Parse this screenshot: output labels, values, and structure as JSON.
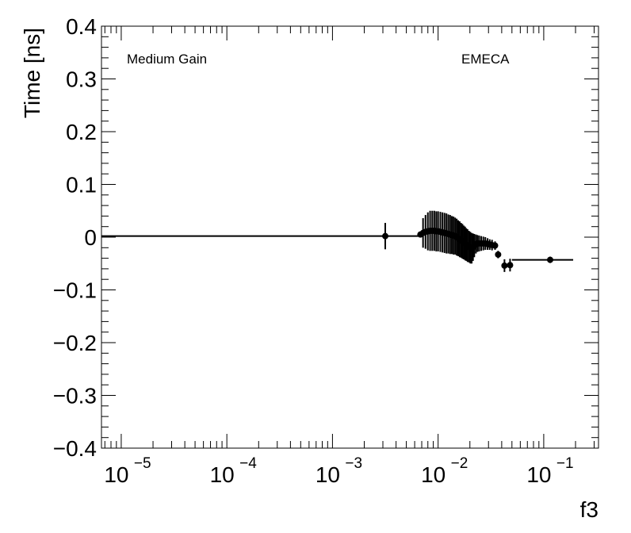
{
  "chart_data": {
    "type": "scatter",
    "xscale": "log",
    "xlim": [
      6.5e-06,
      0.33
    ],
    "ylim": [
      -0.4,
      0.4
    ],
    "xlabel": "f3",
    "ylabel": "Time [ns]",
    "grid": false,
    "annotations": [
      "Medium Gain",
      "EMECA"
    ],
    "x_ticks": [
      {
        "base": "10",
        "exp": "−5",
        "value": 1e-05
      },
      {
        "base": "10",
        "exp": "−4",
        "value": 0.0001
      },
      {
        "base": "10",
        "exp": "−3",
        "value": 0.001
      },
      {
        "base": "10",
        "exp": "−2",
        "value": 0.01
      },
      {
        "base": "10",
        "exp": "−1",
        "value": 0.1
      }
    ],
    "y_ticks": [
      {
        "label": "0.4",
        "value": 0.4
      },
      {
        "label": "0.3",
        "value": 0.3
      },
      {
        "label": "0.2",
        "value": 0.2
      },
      {
        "label": "0.1",
        "value": 0.1
      },
      {
        "label": "0",
        "value": 0
      },
      {
        "label": "−0.1",
        "value": -0.1
      },
      {
        "label": "−0.2",
        "value": -0.2
      },
      {
        "label": "−0.3",
        "value": -0.3
      },
      {
        "label": "−0.4",
        "value": -0.4
      }
    ],
    "points": [
      {
        "x": 0.00316,
        "y": 0.002,
        "xlo": 6.5e-06,
        "xhi": 0.0065,
        "yerr": 0.025
      },
      {
        "x": 0.0068,
        "y": 0.005,
        "xlo": 0.0065,
        "xhi": 0.0071,
        "yerr": 0.0
      },
      {
        "x": 0.0072,
        "y": 0.008,
        "xlo": 0.0071,
        "xhi": 0.0074,
        "yerr": 0.028
      },
      {
        "x": 0.0076,
        "y": 0.01,
        "xlo": 0.0074,
        "xhi": 0.0078,
        "yerr": 0.032
      },
      {
        "x": 0.008,
        "y": 0.011,
        "xlo": 0.0078,
        "xhi": 0.0082,
        "yerr": 0.036
      },
      {
        "x": 0.0084,
        "y": 0.012,
        "xlo": 0.0082,
        "xhi": 0.0086,
        "yerr": 0.038
      },
      {
        "x": 0.0088,
        "y": 0.012,
        "xlo": 0.0086,
        "xhi": 0.009,
        "yerr": 0.038
      },
      {
        "x": 0.0092,
        "y": 0.012,
        "xlo": 0.009,
        "xhi": 0.0094,
        "yerr": 0.038
      },
      {
        "x": 0.0096,
        "y": 0.011,
        "xlo": 0.0094,
        "xhi": 0.0098,
        "yerr": 0.038
      },
      {
        "x": 0.01,
        "y": 0.011,
        "xlo": 0.0098,
        "xhi": 0.0102,
        "yerr": 0.038
      },
      {
        "x": 0.0105,
        "y": 0.01,
        "xlo": 0.0102,
        "xhi": 0.0107,
        "yerr": 0.038
      },
      {
        "x": 0.011,
        "y": 0.009,
        "xlo": 0.0107,
        "xhi": 0.0112,
        "yerr": 0.038
      },
      {
        "x": 0.0115,
        "y": 0.008,
        "xlo": 0.0112,
        "xhi": 0.0117,
        "yerr": 0.038
      },
      {
        "x": 0.012,
        "y": 0.007,
        "xlo": 0.0117,
        "xhi": 0.0122,
        "yerr": 0.038
      },
      {
        "x": 0.0125,
        "y": 0.006,
        "xlo": 0.0122,
        "xhi": 0.0127,
        "yerr": 0.037
      },
      {
        "x": 0.013,
        "y": 0.005,
        "xlo": 0.0127,
        "xhi": 0.0132,
        "yerr": 0.037
      },
      {
        "x": 0.0135,
        "y": 0.004,
        "xlo": 0.0132,
        "xhi": 0.0137,
        "yerr": 0.036
      },
      {
        "x": 0.014,
        "y": 0.003,
        "xlo": 0.0137,
        "xhi": 0.0142,
        "yerr": 0.036
      },
      {
        "x": 0.0145,
        "y": 0.002,
        "xlo": 0.0142,
        "xhi": 0.0147,
        "yerr": 0.035
      },
      {
        "x": 0.015,
        "y": 0.0,
        "xlo": 0.0147,
        "xhi": 0.0152,
        "yerr": 0.035
      },
      {
        "x": 0.0155,
        "y": -0.002,
        "xlo": 0.0152,
        "xhi": 0.0157,
        "yerr": 0.034
      },
      {
        "x": 0.016,
        "y": -0.004,
        "xlo": 0.0157,
        "xhi": 0.0162,
        "yerr": 0.034
      },
      {
        "x": 0.0165,
        "y": -0.006,
        "xlo": 0.0162,
        "xhi": 0.0167,
        "yerr": 0.033
      },
      {
        "x": 0.017,
        "y": -0.008,
        "xlo": 0.0167,
        "xhi": 0.0172,
        "yerr": 0.033
      },
      {
        "x": 0.0175,
        "y": -0.01,
        "xlo": 0.0172,
        "xhi": 0.0177,
        "yerr": 0.032
      },
      {
        "x": 0.018,
        "y": -0.012,
        "xlo": 0.0177,
        "xhi": 0.0182,
        "yerr": 0.032
      },
      {
        "x": 0.0185,
        "y": -0.014,
        "xlo": 0.0182,
        "xhi": 0.0187,
        "yerr": 0.031
      },
      {
        "x": 0.019,
        "y": -0.016,
        "xlo": 0.0187,
        "xhi": 0.0193,
        "yerr": 0.031
      },
      {
        "x": 0.0196,
        "y": -0.018,
        "xlo": 0.0193,
        "xhi": 0.0199,
        "yerr": 0.03
      },
      {
        "x": 0.0202,
        "y": -0.02,
        "xlo": 0.0199,
        "xhi": 0.0205,
        "yerr": 0.03
      },
      {
        "x": 0.0208,
        "y": -0.021,
        "xlo": 0.0205,
        "xhi": 0.0211,
        "yerr": 0.029
      },
      {
        "x": 0.0214,
        "y": -0.019,
        "xlo": 0.0211,
        "xhi": 0.0217,
        "yerr": 0.026
      },
      {
        "x": 0.022,
        "y": -0.016,
        "xlo": 0.0217,
        "xhi": 0.0224,
        "yerr": 0.022
      },
      {
        "x": 0.0228,
        "y": -0.013,
        "xlo": 0.0224,
        "xhi": 0.0232,
        "yerr": 0.018
      },
      {
        "x": 0.0236,
        "y": -0.012,
        "xlo": 0.0232,
        "xhi": 0.024,
        "yerr": 0.016
      },
      {
        "x": 0.0245,
        "y": -0.012,
        "xlo": 0.024,
        "xhi": 0.025,
        "yerr": 0.015
      },
      {
        "x": 0.0256,
        "y": -0.012,
        "xlo": 0.025,
        "xhi": 0.0262,
        "yerr": 0.014
      },
      {
        "x": 0.0268,
        "y": -0.012,
        "xlo": 0.0262,
        "xhi": 0.0274,
        "yerr": 0.013
      },
      {
        "x": 0.028,
        "y": -0.012,
        "xlo": 0.0274,
        "xhi": 0.0287,
        "yerr": 0.012
      },
      {
        "x": 0.0294,
        "y": -0.013,
        "xlo": 0.0287,
        "xhi": 0.0301,
        "yerr": 0.011
      },
      {
        "x": 0.0308,
        "y": -0.014,
        "xlo": 0.0301,
        "xhi": 0.0316,
        "yerr": 0.01
      },
      {
        "x": 0.0324,
        "y": -0.015,
        "xlo": 0.0316,
        "xhi": 0.0334,
        "yerr": 0.01
      },
      {
        "x": 0.0346,
        "y": -0.016,
        "xlo": 0.0334,
        "xhi": 0.0358,
        "yerr": 0.008
      },
      {
        "x": 0.037,
        "y": -0.033,
        "xlo": 0.0358,
        "xhi": 0.0385,
        "yerr": 0.007
      },
      {
        "x": 0.0425,
        "y": -0.054,
        "xlo": 0.04,
        "xhi": 0.0445,
        "yerr": 0.012
      },
      {
        "x": 0.048,
        "y": -0.053,
        "xlo": 0.0455,
        "xhi": 0.05,
        "yerr": 0.012
      },
      {
        "x": 0.115,
        "y": -0.043,
        "xlo": 0.05,
        "xhi": 0.19,
        "yerr": 0.006
      }
    ]
  }
}
